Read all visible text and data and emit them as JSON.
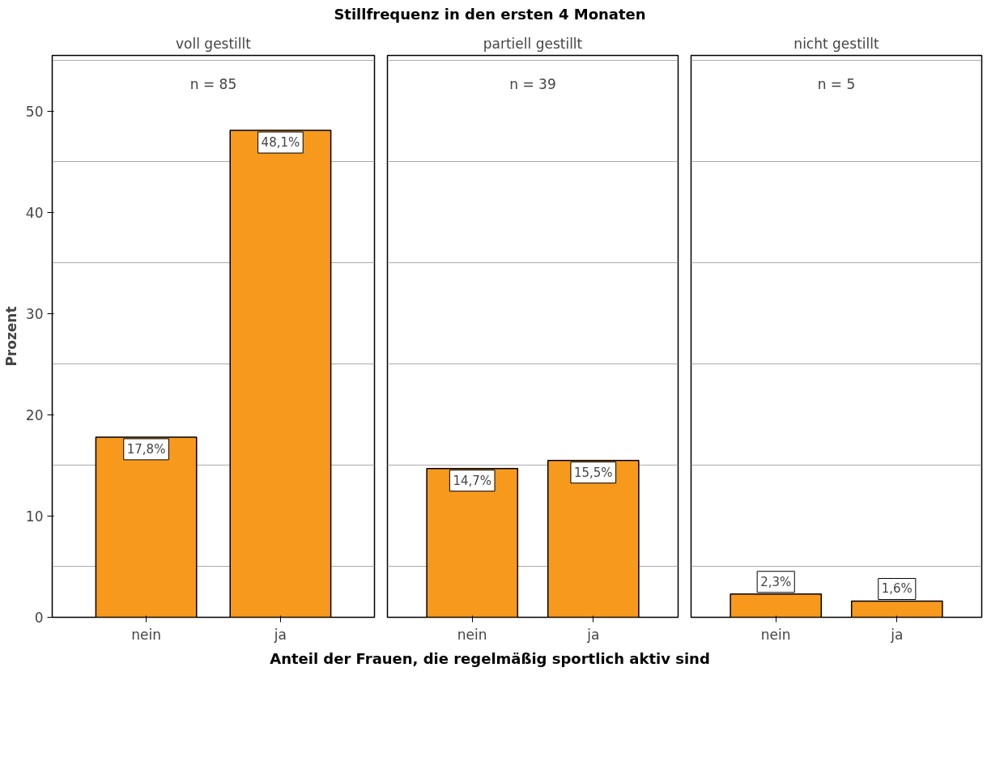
{
  "chart_data": [
    {
      "type": "bar",
      "subtitle": "voll gestillt",
      "ylabel": "Prozent",
      "categories": [
        "nein",
        "ja"
      ],
      "values": [
        17.8,
        48.1
      ],
      "value_labels": [
        "17,8%",
        "48,1%"
      ],
      "color": "#f7991c",
      "annotations": [
        "n = 85"
      ],
      "ylim": [
        0,
        55.5
      ],
      "yticks": [
        0,
        10,
        20,
        30,
        40,
        50,
        {
          "value": 5,
          "label": null
        },
        {
          "value": 15,
          "label": null
        },
        {
          "value": 25,
          "label": null
        },
        {
          "value": 35,
          "label": null
        },
        {
          "value": 45,
          "label": null
        },
        {
          "value": 55,
          "label": null
        }
      ],
      "grid": "y"
    },
    {
      "type": "bar",
      "title": "Stillfrequenz in den ersten 4 Monaten",
      "xlabel": "Anteil der Frauen, die regelmäßig sportlich aktiv sind",
      "subtitle": "partiell gestillt",
      "categories": [
        "nein",
        "ja"
      ],
      "values": [
        14.7,
        15.5
      ],
      "value_labels": [
        "14,7%",
        "15,5%"
      ],
      "color": "#f7991c",
      "annotations": [
        "n = 39"
      ],
      "ylim": [
        0,
        55.5
      ],
      "yticks": [
        0,
        10,
        20,
        30,
        40,
        50,
        {
          "value": 5,
          "label": null
        },
        {
          "value": 15,
          "label": null
        },
        {
          "value": 25,
          "label": null
        },
        {
          "value": 35,
          "label": null
        },
        {
          "value": 45,
          "label": null
        },
        {
          "value": 55,
          "label": null
        }
      ],
      "grid": "y",
      "tick_labels": "x"
    },
    {
      "type": "bar",
      "subtitle": "nicht gestillt",
      "categories": [
        "nein",
        "ja"
      ],
      "values": [
        2.3,
        1.6
      ],
      "value_labels": [
        "2,3%",
        "1,6%"
      ],
      "color": "#f7991c",
      "annotations": [
        "n = 5"
      ],
      "ylim": [
        0,
        55.5
      ],
      "yticks": [
        0,
        10,
        20,
        30,
        40,
        50,
        {
          "value": 5,
          "label": null
        },
        {
          "value": 15,
          "label": null
        },
        {
          "value": 25,
          "label": null
        },
        {
          "value": 35,
          "label": null
        },
        {
          "value": 45,
          "label": null
        },
        {
          "value": 55,
          "label": null
        }
      ],
      "grid": "y",
      "tick_labels": "x"
    }
  ]
}
